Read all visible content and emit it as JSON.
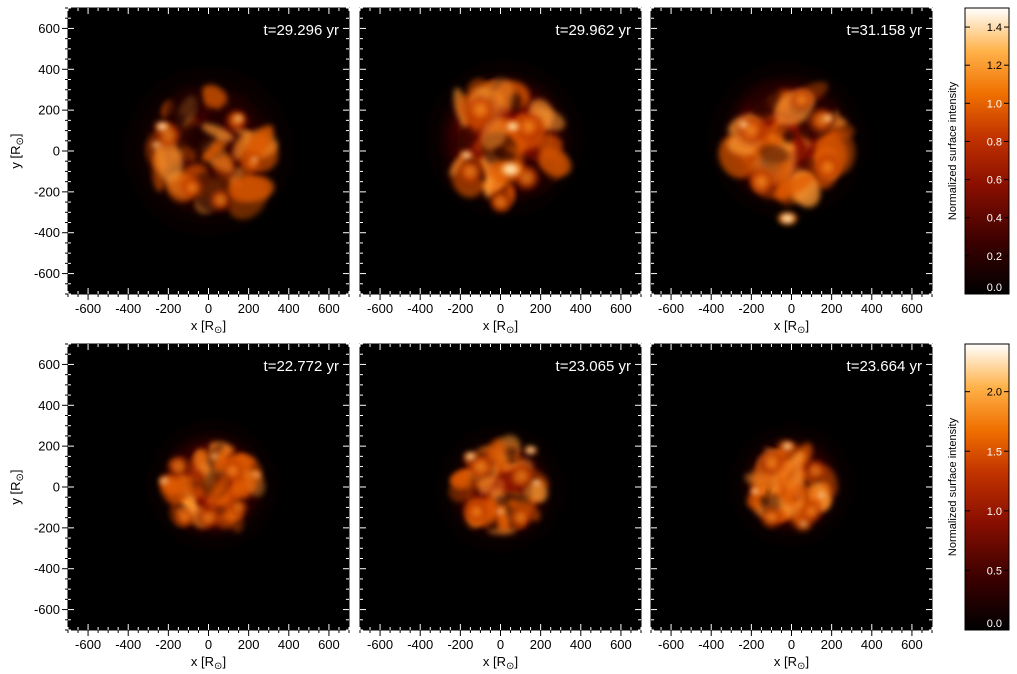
{
  "figure": {
    "axes": {
      "x_label_main": "x [R",
      "y_label_main": "y [R",
      "sun_symbol": "⊙",
      "label_close": "]",
      "ticks": [
        "-600",
        "-400",
        "-200",
        "0",
        "200",
        "400",
        "600"
      ],
      "range": [
        -700,
        700
      ]
    },
    "panels": [
      {
        "row": 0,
        "col": 0,
        "time": "t=29.296 yr"
      },
      {
        "row": 0,
        "col": 1,
        "time": "t=29.962 yr"
      },
      {
        "row": 0,
        "col": 2,
        "time": "t=31.158 yr"
      },
      {
        "row": 1,
        "col": 0,
        "time": "t=22.772 yr"
      },
      {
        "row": 1,
        "col": 1,
        "time": "t=23.065 yr"
      },
      {
        "row": 1,
        "col": 2,
        "time": "t=23.664 yr"
      }
    ],
    "colorbars": [
      {
        "row": 0,
        "label": "Normalized surface intensity",
        "ticks": [
          "0.0",
          "0.2",
          "0.4",
          "0.6",
          "0.8",
          "1.0",
          "1.2",
          "1.4"
        ],
        "max": 1.5
      },
      {
        "row": 1,
        "label": "Normalized surface intensity",
        "ticks": [
          "0.0",
          "0.5",
          "1.0",
          "1.5",
          "2.0"
        ],
        "max": 2.4
      }
    ],
    "colormap": [
      "#000000",
      "#3a0000",
      "#8a0f00",
      "#d24400",
      "#ff8a00",
      "#ffc966",
      "#ffffff"
    ]
  }
}
